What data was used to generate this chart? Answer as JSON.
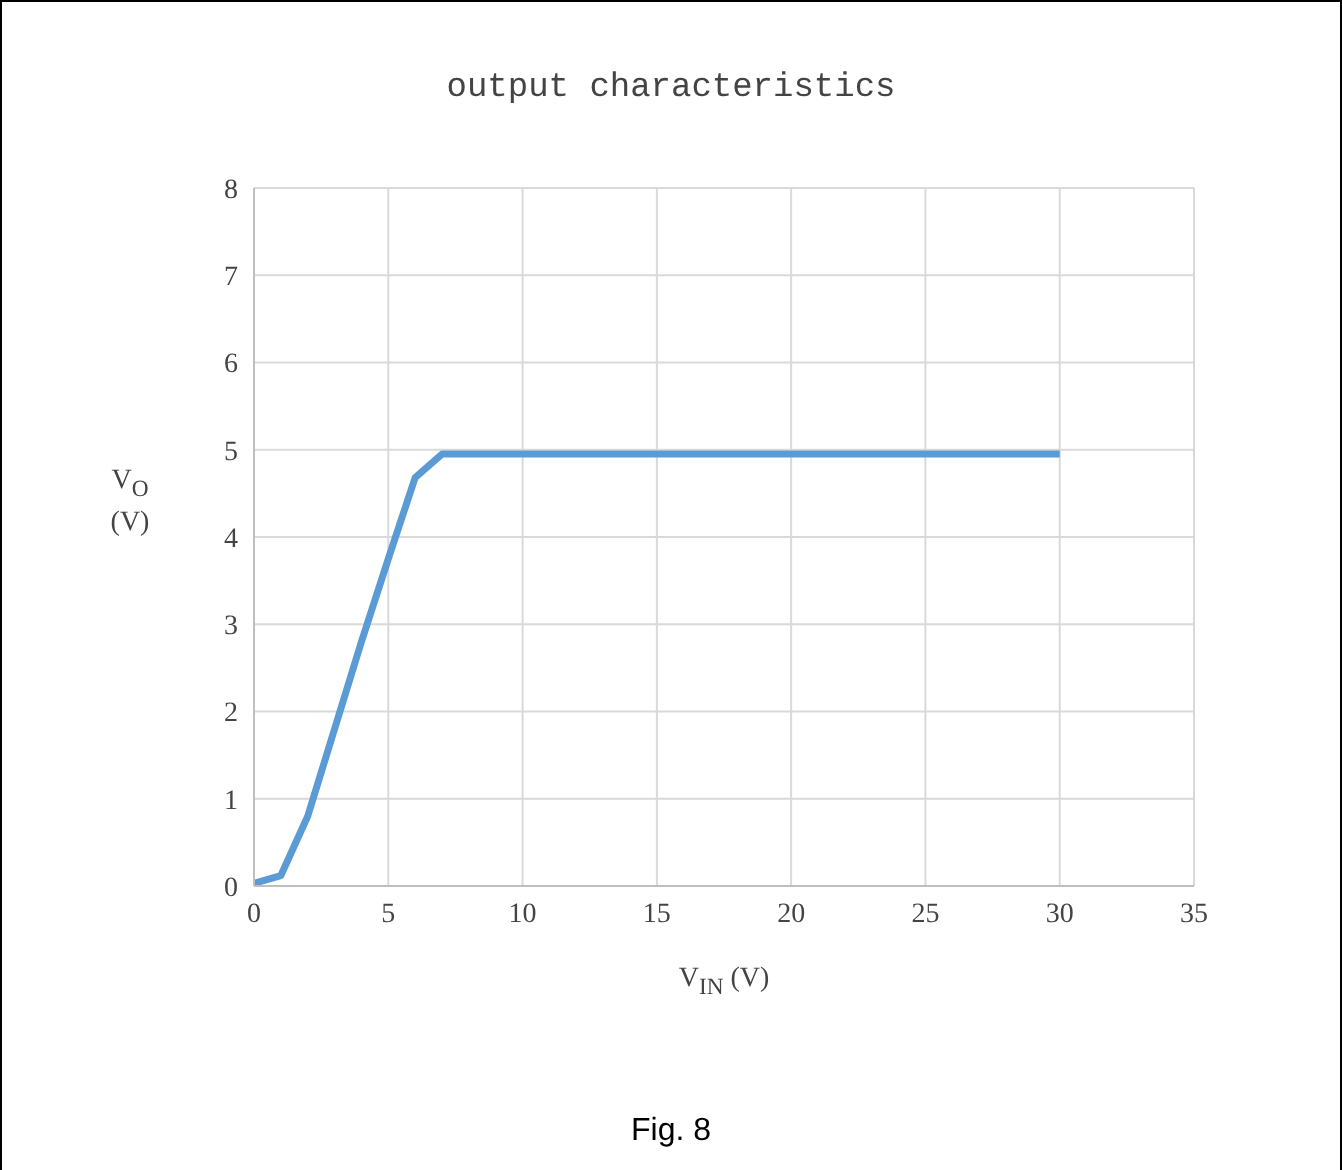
{
  "chart_data": {
    "type": "line",
    "title": "output characteristics",
    "xlabel": "V$_{IN}$ (V)",
    "ylabel": "V$_{O}$\n(V)",
    "annotations": [
      "Fig. 8"
    ],
    "x": [
      0,
      1,
      2,
      3,
      4,
      5,
      6,
      7,
      30
    ],
    "series": [
      {
        "color": "#5b9bd5",
        "values": [
          0.03,
          0.12,
          0.8,
          1.8,
          2.8,
          3.75,
          4.68,
          4.95,
          4.95
        ]
      }
    ],
    "xlim": [
      0,
      35
    ],
    "xticks": [
      0,
      5,
      10,
      15,
      20,
      25,
      30,
      35
    ],
    "ylim": [
      0,
      8
    ],
    "yticks": [
      0,
      1,
      2,
      3,
      4,
      5,
      6,
      7,
      8
    ],
    "grid": true,
    "legend": false,
    "marker": "none",
    "line_style": "solid"
  }
}
